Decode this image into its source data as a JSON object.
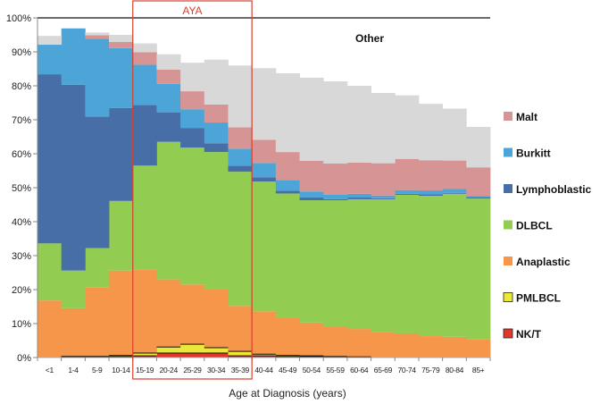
{
  "chart_data": {
    "type": "area",
    "stacked": true,
    "step": true,
    "title": "",
    "xlabel": "Age at Diagnosis (years)",
    "ylabel": "",
    "ylim": [
      0,
      100
    ],
    "y_ticks": [
      "0%",
      "10%",
      "20%",
      "30%",
      "40%",
      "50%",
      "60%",
      "70%",
      "80%",
      "90%",
      "100%"
    ],
    "categories": [
      "<1",
      "1-4",
      "5-9",
      "10-14",
      "15-19",
      "20-24",
      "25-29",
      "30-34",
      "35-39",
      "40-44",
      "45-49",
      "50-54",
      "55-59",
      "60-64",
      "65-69",
      "70-74",
      "75-79",
      "80-84",
      "85+"
    ],
    "series": [
      {
        "name": "NK/T",
        "color": "#e0362b",
        "values": [
          0.0,
          0.3,
          0.3,
          0.3,
          0.5,
          1.3,
          1.3,
          1.3,
          0.5,
          0.5,
          0.3,
          0.3,
          0.2,
          0.1,
          0.0,
          0.0,
          0.0,
          0.0,
          0.0
        ]
      },
      {
        "name": "PMLBCL",
        "color": "#ece83a",
        "values": [
          0.0,
          0.0,
          0.0,
          0.3,
          0.8,
          1.8,
          2.6,
          1.6,
          1.3,
          0.5,
          0.3,
          0.2,
          0.1,
          0.1,
          0.0,
          0.0,
          0.0,
          0.0,
          0.0
        ]
      },
      {
        "name": "Anaplastic",
        "color": "#f5964a",
        "values": [
          16.8,
          14.2,
          20.3,
          25.0,
          24.7,
          19.9,
          17.6,
          17.1,
          13.4,
          12.6,
          11.1,
          9.8,
          8.9,
          8.2,
          7.4,
          7.1,
          6.3,
          6.1,
          5.3
        ]
      },
      {
        "name": "DLBCL",
        "color": "#92cd52",
        "values": [
          16.8,
          11.1,
          11.6,
          20.5,
          30.5,
          40.5,
          40.3,
          40.5,
          39.5,
          38.2,
          36.6,
          36.0,
          37.1,
          38.2,
          39.2,
          40.8,
          41.3,
          42.1,
          41.5
        ]
      },
      {
        "name": "Lymphoblastic",
        "color": "#476ea6",
        "values": [
          49.8,
          54.7,
          38.7,
          27.4,
          17.9,
          8.7,
          5.8,
          2.6,
          1.8,
          1.3,
          0.8,
          0.8,
          0.3,
          0.5,
          0.3,
          0.3,
          0.5,
          0.3,
          0.3
        ]
      },
      {
        "name": "Burkitt",
        "color": "#4ca5d6",
        "values": [
          8.7,
          16.6,
          22.9,
          17.6,
          11.8,
          8.4,
          5.5,
          6.1,
          5.0,
          4.2,
          3.2,
          1.8,
          1.3,
          1.1,
          0.8,
          1.1,
          1.1,
          1.1,
          0.5
        ]
      },
      {
        "name": "Malt",
        "color": "#d69594",
        "values": [
          0.0,
          0.0,
          1.1,
          1.8,
          3.7,
          4.2,
          5.3,
          5.3,
          6.3,
          6.8,
          8.2,
          9.0,
          9.2,
          9.2,
          9.5,
          9.2,
          8.9,
          8.4,
          8.4
        ]
      },
      {
        "name": "Other",
        "color": "#d8d8d8",
        "values": [
          2.6,
          0.0,
          0.8,
          2.1,
          2.6,
          4.5,
          8.4,
          13.2,
          18.2,
          21.1,
          23.2,
          24.5,
          24.2,
          22.6,
          20.7,
          18.7,
          16.6,
          15.3,
          11.9
        ]
      }
    ],
    "legend": {
      "placement": "right",
      "order": [
        "Malt",
        "Burkitt",
        "Lymphoblastic",
        "DLBCL",
        "Anaplastic",
        "PMLBCL",
        "NK/T"
      ]
    },
    "annotations": [
      {
        "text": "Other",
        "refers_to": "Other"
      },
      {
        "text": "AYA",
        "range": [
          "15-19",
          "35-39"
        ],
        "color": "#d8402e"
      }
    ],
    "reference_line": {
      "y": 100
    },
    "grid": false
  }
}
